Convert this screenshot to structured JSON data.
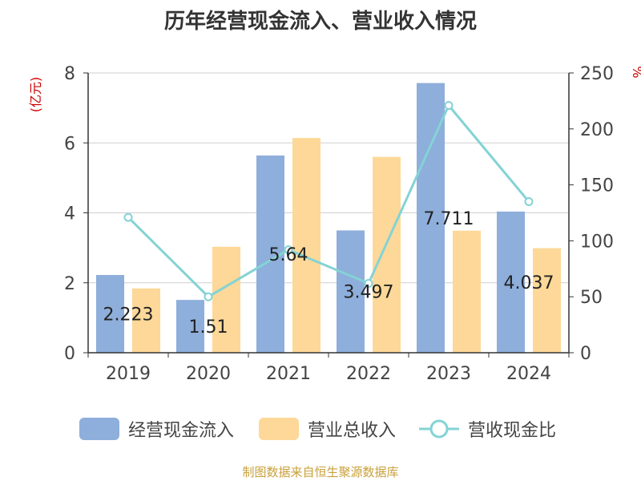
{
  "chart_data": {
    "type": "bar",
    "title": "历年经营现金流入、营业收入情况",
    "categories": [
      "2019",
      "2020",
      "2021",
      "2022",
      "2023",
      "2024"
    ],
    "series": [
      {
        "name": "经营现金流入",
        "type": "bar",
        "axis": "left",
        "color": "#8eaedb",
        "values": [
          2.223,
          1.51,
          5.64,
          3.497,
          7.711,
          4.037
        ]
      },
      {
        "name": "营业总收入",
        "type": "bar",
        "axis": "left",
        "color": "#fdd898",
        "values": [
          1.84,
          3.03,
          6.14,
          5.6,
          3.49,
          2.99
        ]
      },
      {
        "name": "营收现金比",
        "type": "line",
        "axis": "right",
        "color": "#84d3d5",
        "values": [
          121,
          50,
          92,
          62,
          221,
          135
        ]
      }
    ],
    "data_labels": [
      "2.223",
      "1.51",
      "5.64",
      "3.497",
      "7.711",
      "4.037"
    ],
    "y_left": {
      "label": "(亿元)",
      "min": 0,
      "max": 8,
      "ticks": [
        "0",
        "2",
        "4",
        "6",
        "8"
      ]
    },
    "y_right": {
      "label": "%",
      "min": 0,
      "max": 250,
      "ticks": [
        "0",
        "50",
        "100",
        "150",
        "200",
        "250"
      ]
    },
    "grid": true,
    "legend_position": "bottom"
  },
  "legend": [
    {
      "label": "经营现金流入",
      "color": "#8eaedb",
      "marker": "bar"
    },
    {
      "label": "营业总收入",
      "color": "#fdd898",
      "marker": "bar"
    },
    {
      "label": "营收现金比",
      "color": "#84d3d5",
      "marker": "line"
    }
  ],
  "source_text": "制图数据来自恒生聚源数据库"
}
